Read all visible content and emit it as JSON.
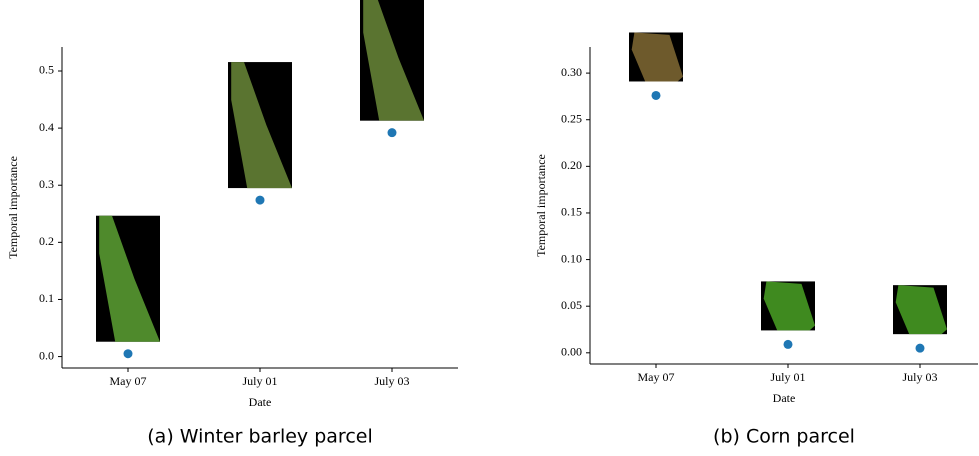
{
  "chart_data": [
    {
      "type": "scatter",
      "caption": "(a) Winter barley parcel",
      "xlabel": "Date",
      "ylabel": "Temporal importance",
      "categories": [
        "May 07",
        "July 01",
        "July 03"
      ],
      "values": [
        0.005,
        0.274,
        0.392
      ],
      "color": "#1f77b4",
      "ylim": [
        -0.02,
        0.542
      ],
      "yticks": [
        {
          "value": 0,
          "label": "0.0"
        },
        0.1,
        0.2,
        0.3,
        0.4,
        0.5
      ]
    },
    {
      "type": "scatter",
      "caption": "(b) Corn parcel",
      "xlabel": "Date",
      "ylabel": "Temporal importance",
      "categories": [
        "May 07",
        "July 01",
        "July 03"
      ],
      "values": [
        0.276,
        0.009,
        0.005
      ],
      "color": "#1f77b4",
      "ylim": [
        -0.012,
        0.328
      ],
      "yticks": [
        {
          "value": 0,
          "label": "0.00"
        },
        0.05,
        {
          "value": 0.1,
          "label": "0.10"
        },
        0.15,
        {
          "value": 0.2,
          "label": "0.20"
        },
        0.25,
        {
          "value": 0.3,
          "label": "0.30"
        }
      ]
    }
  ]
}
